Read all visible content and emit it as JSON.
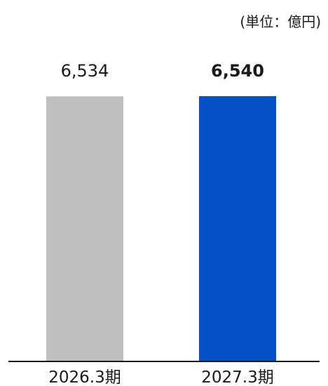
{
  "chart_data": {
    "type": "bar",
    "unit_label": "(単位：億円)",
    "categories": [
      "2026.3期",
      "2027.3期"
    ],
    "values": [
      6534,
      6540
    ],
    "value_labels": [
      "6,534",
      "6,540"
    ],
    "highlight_index": 1,
    "colors": [
      "#bfbfbf",
      "#0550c6"
    ],
    "axis_color": "#1a1a1a",
    "ylim": [
      0,
      6540
    ],
    "grid": false,
    "legend": "none"
  }
}
